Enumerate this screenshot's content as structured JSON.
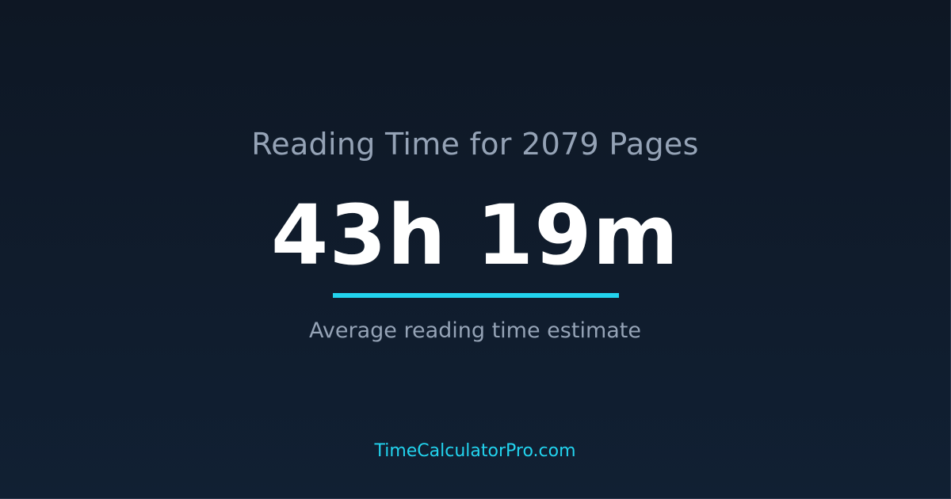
{
  "title": "Reading Time for 2079 Pages",
  "result": "43h 19m",
  "caption": "Average reading time estimate",
  "site": "TimeCalculatorPro.com",
  "colors": {
    "accent": "#22d3ee",
    "background": "#0f1a2a",
    "muted_text": "#95a3b6"
  }
}
